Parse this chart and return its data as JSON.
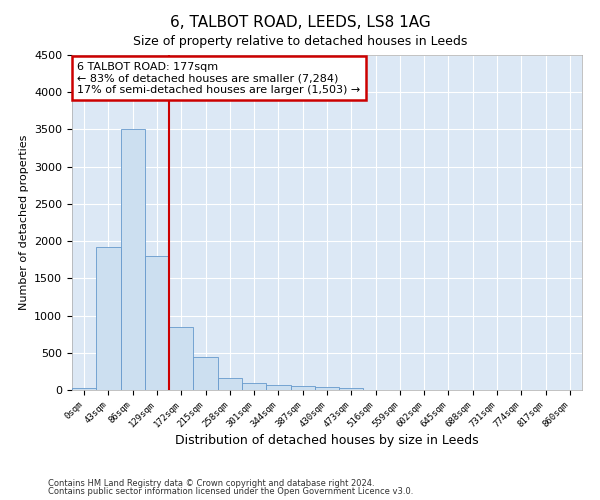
{
  "title": "6, TALBOT ROAD, LEEDS, LS8 1AG",
  "subtitle": "Size of property relative to detached houses in Leeds",
  "xlabel": "Distribution of detached houses by size in Leeds",
  "ylabel": "Number of detached properties",
  "bar_labels": [
    "0sqm",
    "43sqm",
    "86sqm",
    "129sqm",
    "172sqm",
    "215sqm",
    "258sqm",
    "301sqm",
    "344sqm",
    "387sqm",
    "430sqm",
    "473sqm",
    "516sqm",
    "559sqm",
    "602sqm",
    "645sqm",
    "688sqm",
    "731sqm",
    "774sqm",
    "817sqm",
    "860sqm"
  ],
  "bar_values": [
    30,
    1920,
    3500,
    1800,
    850,
    450,
    160,
    100,
    70,
    55,
    40,
    30,
    0,
    0,
    0,
    0,
    0,
    0,
    0,
    0,
    0
  ],
  "bar_color": "#ccdff0",
  "bar_edge_color": "#6699cc",
  "vline_color": "#cc0000",
  "annotation_line1": "6 TALBOT ROAD: 177sqm",
  "annotation_line2": "← 83% of detached houses are smaller (7,284)",
  "annotation_line3": "17% of semi-detached houses are larger (1,503) →",
  "annotation_box_color": "#ffffff",
  "annotation_box_edge": "#cc0000",
  "ylim": [
    0,
    4500
  ],
  "yticks": [
    0,
    500,
    1000,
    1500,
    2000,
    2500,
    3000,
    3500,
    4000,
    4500
  ],
  "footnote1": "Contains HM Land Registry data © Crown copyright and database right 2024.",
  "footnote2": "Contains public sector information licensed under the Open Government Licence v3.0.",
  "bg_color": "#ffffff",
  "plot_bg_color": "#dce8f5",
  "grid_color": "#c8d8e8"
}
